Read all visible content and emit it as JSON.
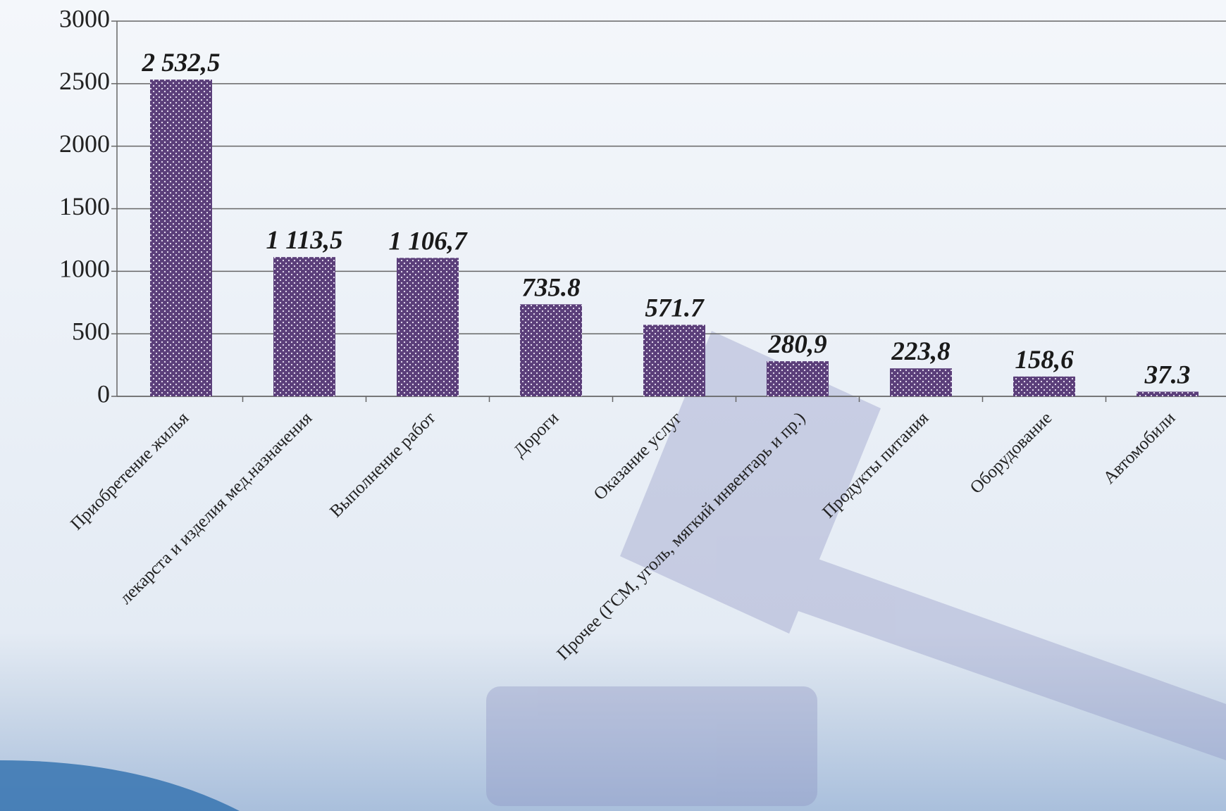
{
  "chart_data": {
    "type": "bar",
    "categories": [
      "Приобретение жилья",
      "лекарста и изделия мед.назначения",
      "Выполнение работ",
      "Дороги",
      "Оказание услуг",
      "Прочее (ГСМ, уголь, мягкий инвентарь и пр.)",
      "Продукты питания",
      "Оборудование",
      "Автомобили"
    ],
    "values": [
      2532.5,
      1113.5,
      1106.7,
      735.8,
      571.7,
      280.9,
      223.8,
      158.6,
      37.3
    ],
    "value_labels": [
      "2 532,5",
      "1 113,5",
      "1 106,7",
      "735.8",
      "571.7",
      "280,9",
      "223,8",
      "158,6",
      "37.3"
    ],
    "color": "#5b3f7a",
    "ylim": [
      0,
      3000
    ],
    "yticks": [
      0,
      500,
      1000,
      1500,
      2000,
      2500,
      3000
    ],
    "grid": true
  }
}
